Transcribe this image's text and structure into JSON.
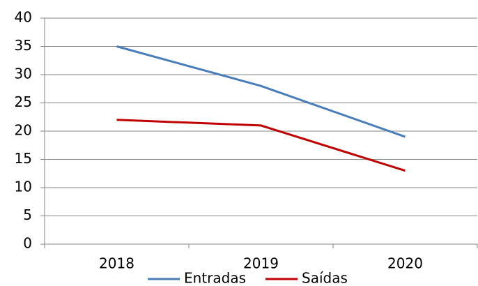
{
  "chart_data": {
    "type": "line",
    "categories": [
      "2018",
      "2019",
      "2020"
    ],
    "series": [
      {
        "name": "Entradas",
        "color": "#4a7ebb",
        "values": [
          35,
          28,
          19
        ]
      },
      {
        "name": "Saídas",
        "color": "#c00000",
        "values": [
          22,
          21,
          13
        ]
      }
    ],
    "ylim": [
      0,
      40
    ],
    "yticks": [
      0,
      5,
      10,
      15,
      20,
      25,
      30,
      35,
      40
    ],
    "grid": true,
    "legend": "bottom"
  }
}
